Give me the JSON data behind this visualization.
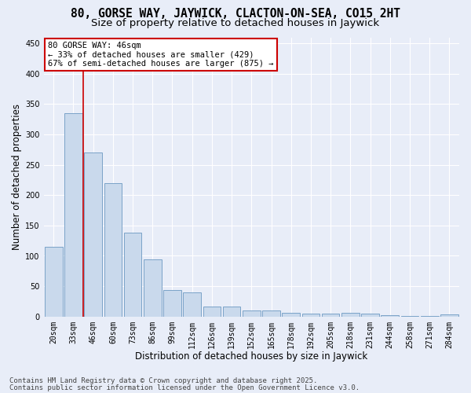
{
  "title_line1": "80, GORSE WAY, JAYWICK, CLACTON-ON-SEA, CO15 2HT",
  "title_line2": "Size of property relative to detached houses in Jaywick",
  "xlabel": "Distribution of detached houses by size in Jaywick",
  "ylabel": "Number of detached properties",
  "categories": [
    "20sqm",
    "33sqm",
    "46sqm",
    "60sqm",
    "73sqm",
    "86sqm",
    "99sqm",
    "112sqm",
    "126sqm",
    "139sqm",
    "152sqm",
    "165sqm",
    "178sqm",
    "192sqm",
    "205sqm",
    "218sqm",
    "231sqm",
    "244sqm",
    "258sqm",
    "271sqm",
    "284sqm"
  ],
  "values": [
    115,
    335,
    270,
    220,
    138,
    94,
    44,
    40,
    17,
    17,
    10,
    10,
    6,
    5,
    5,
    6,
    5,
    2,
    1,
    1,
    3
  ],
  "bar_color": "#c9d9ec",
  "bar_edge_color": "#7ba3c8",
  "background_color": "#e8edf8",
  "grid_color": "#ffffff",
  "vline_x": 1.5,
  "vline_color": "#cc0000",
  "annotation_line1": "80 GORSE WAY: 46sqm",
  "annotation_line2": "← 33% of detached houses are smaller (429)",
  "annotation_line3": "67% of semi-detached houses are larger (875) →",
  "annotation_box_color": "#cc0000",
  "ylim": [
    0,
    460
  ],
  "yticks": [
    0,
    50,
    100,
    150,
    200,
    250,
    300,
    350,
    400,
    450
  ],
  "footer_line1": "Contains HM Land Registry data © Crown copyright and database right 2025.",
  "footer_line2": "Contains public sector information licensed under the Open Government Licence v3.0.",
  "title_fontsize": 10.5,
  "subtitle_fontsize": 9.5,
  "axis_label_fontsize": 8.5,
  "tick_fontsize": 7,
  "annotation_fontsize": 7.5,
  "footer_fontsize": 6.5
}
